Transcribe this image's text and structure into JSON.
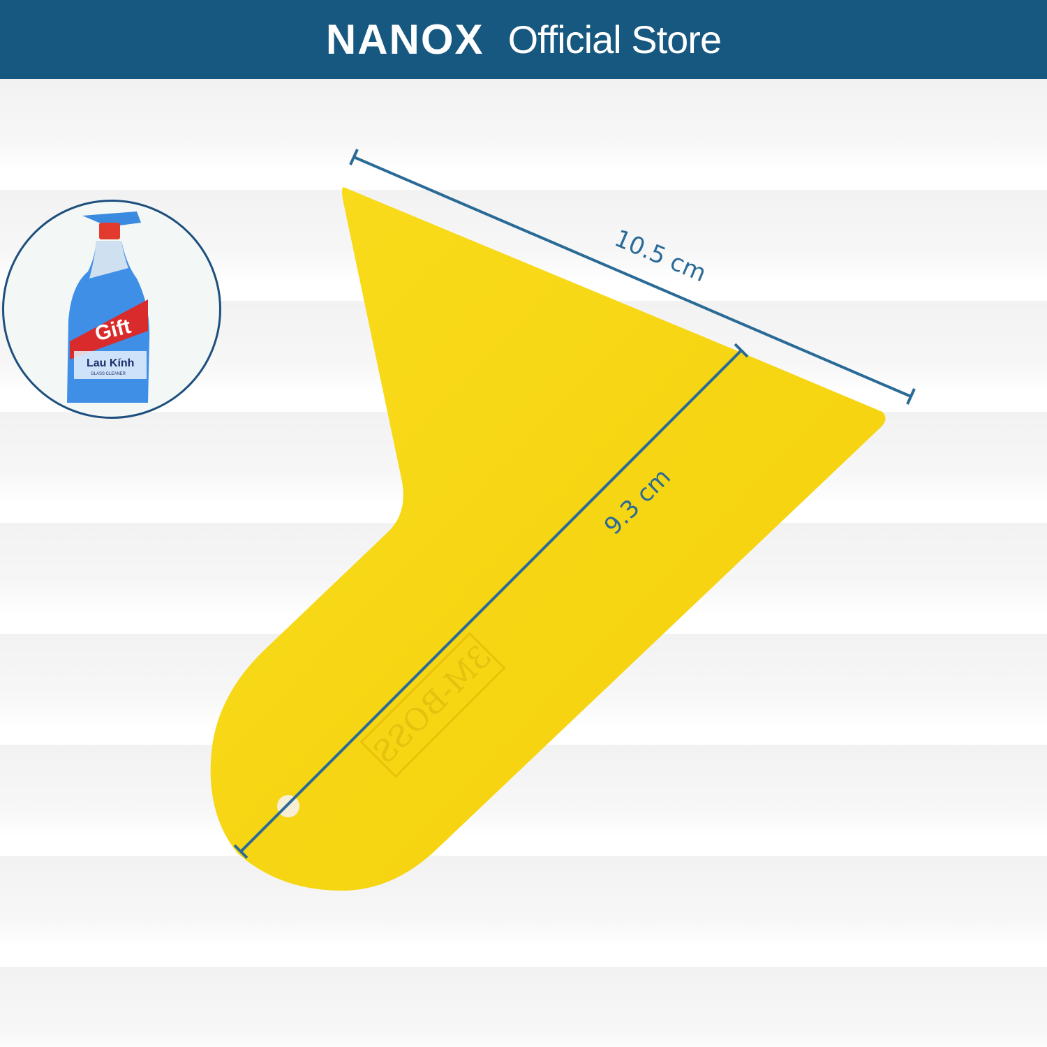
{
  "header": {
    "brand": "NANOX",
    "title": "Official Store"
  },
  "thumbnail": {
    "brand": "Gift",
    "product": "Lau Kính",
    "subtitle": "GLASS CLEANER"
  },
  "product": {
    "embossed_text": "3M-BOSS",
    "color": "#f7d417"
  },
  "dimensions": {
    "width_label": "10.5 cm",
    "height_label": "9.3 cm",
    "line_color": "#2a6a96"
  },
  "colors": {
    "header": "#175880",
    "accent": "#1d4f7e"
  }
}
